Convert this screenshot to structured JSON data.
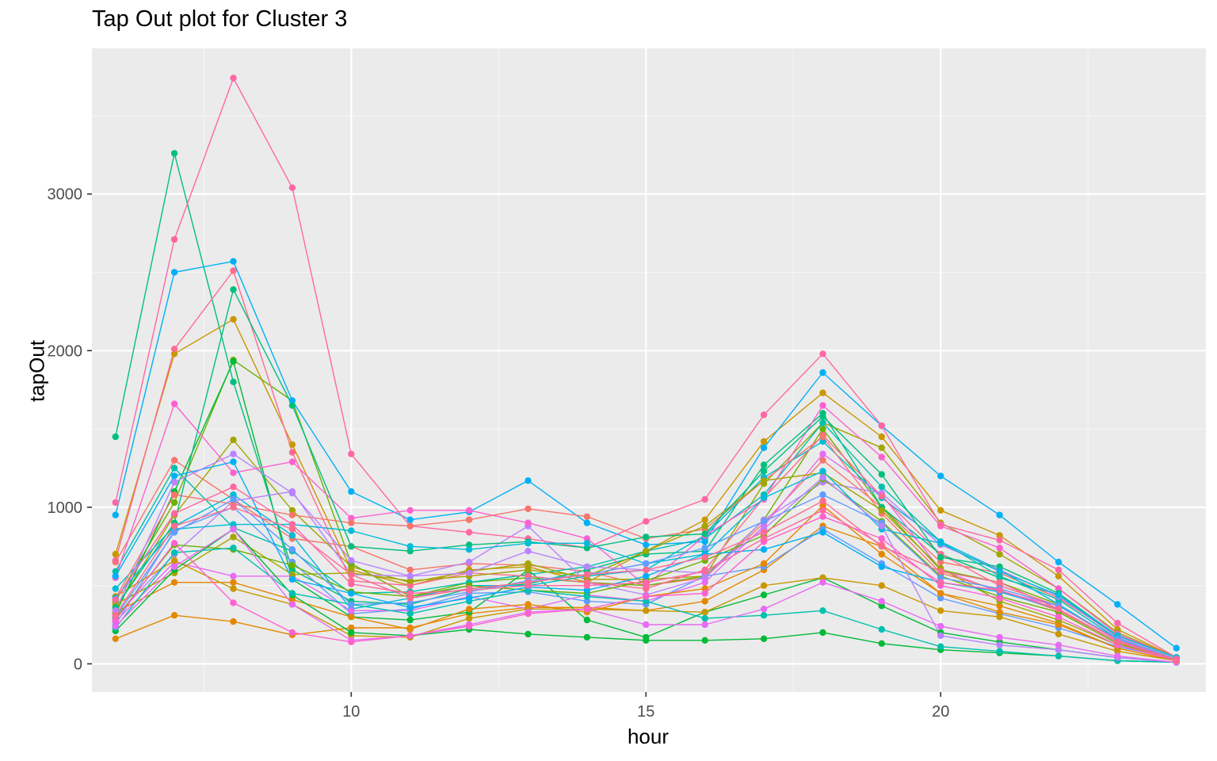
{
  "chart_data": {
    "type": "line",
    "title": "Tap Out plot for Cluster 3",
    "xlabel": "hour",
    "ylabel": "tapOut",
    "x_ticks": [
      10,
      15,
      20
    ],
    "y_ticks": [
      0,
      1000,
      2000,
      3000
    ],
    "xlim": [
      5.6,
      24.5
    ],
    "ylim": [
      -180,
      3930
    ],
    "grid": true,
    "legend": "none",
    "theme": {
      "panel_bg": "#EBEBEB",
      "grid_major": "#FFFFFF",
      "grid_minor": "#F5F5F5",
      "tick_text": "#4D4D4D"
    },
    "x": [
      6,
      7,
      8,
      9,
      10,
      11,
      12,
      13,
      14,
      15,
      16,
      17,
      18,
      19,
      20,
      21,
      22,
      23,
      24
    ],
    "series": [
      {
        "color": "#F8766D",
        "values": [
          650,
          1300,
          1050,
          800,
          750,
          600,
          640,
          630,
          590,
          500,
          550,
          900,
          1300,
          1000,
          650,
          580,
          420,
          180,
          40
        ]
      },
      {
        "color": "#E58700",
        "values": [
          160,
          310,
          270,
          185,
          230,
          230,
          320,
          360,
          360,
          340,
          400,
          600,
          880,
          750,
          450,
          370,
          260,
          100,
          20
        ]
      },
      {
        "color": "#C99800",
        "values": [
          700,
          1980,
          2200,
          1400,
          600,
          500,
          600,
          620,
          520,
          720,
          920,
          1420,
          1730,
          1450,
          980,
          820,
          560,
          220,
          40
        ]
      },
      {
        "color": "#A3A500",
        "values": [
          350,
          950,
          1430,
          980,
          620,
          520,
          590,
          640,
          540,
          540,
          560,
          1150,
          1540,
          1380,
          900,
          700,
          480,
          200,
          40
        ]
      },
      {
        "color": "#6BB100",
        "values": [
          400,
          1030,
          1940,
          1680,
          640,
          430,
          520,
          550,
          520,
          500,
          560,
          920,
          1500,
          1000,
          600,
          520,
          380,
          150,
          30
        ]
      },
      {
        "color": "#00BA38",
        "values": [
          320,
          1100,
          1930,
          540,
          300,
          280,
          330,
          600,
          280,
          170,
          330,
          440,
          550,
          370,
          200,
          140,
          90,
          40,
          10
        ]
      },
      {
        "color": "#00BF7D",
        "values": [
          1450,
          3260,
          1800,
          600,
          400,
          380,
          480,
          510,
          600,
          700,
          720,
          1270,
          1600,
          1000,
          700,
          550,
          440,
          170,
          30
        ]
      },
      {
        "color": "#00C0AF",
        "values": [
          590,
          1250,
          870,
          720,
          450,
          460,
          520,
          570,
          620,
          720,
          800,
          1080,
          1540,
          1130,
          780,
          560,
          410,
          160,
          30
        ]
      },
      {
        "color": "#00BCD8",
        "values": [
          480,
          880,
          1080,
          820,
          350,
          420,
          500,
          500,
          560,
          600,
          820,
          1190,
          1420,
          1060,
          780,
          600,
          380,
          150,
          30
        ]
      },
      {
        "color": "#00B0F6",
        "values": [
          950,
          2500,
          2570,
          1680,
          1100,
          920,
          970,
          1170,
          900,
          760,
          780,
          1380,
          1860,
          1520,
          1200,
          950,
          650,
          380,
          100
        ]
      },
      {
        "color": "#619CFF",
        "values": [
          250,
          850,
          1000,
          650,
          320,
          350,
          450,
          460,
          400,
          380,
          560,
          620,
          860,
          640,
          420,
          320,
          230,
          110,
          30
        ]
      },
      {
        "color": "#B983FF",
        "values": [
          300,
          700,
          1040,
          1100,
          570,
          560,
          650,
          880,
          520,
          440,
          550,
          920,
          1160,
          1090,
          760,
          600,
          430,
          170,
          30
        ]
      },
      {
        "color": "#E76BF3",
        "values": [
          270,
          650,
          560,
          560,
          340,
          340,
          430,
          350,
          440,
          400,
          520,
          880,
          1340,
          1080,
          600,
          460,
          370,
          150,
          30
        ]
      },
      {
        "color": "#FD61D1",
        "values": [
          550,
          1660,
          1220,
          1290,
          930,
          980,
          980,
          900,
          800,
          500,
          820,
          1050,
          1650,
          1320,
          880,
          740,
          480,
          190,
          40
        ]
      },
      {
        "color": "#FF67A4",
        "values": [
          1030,
          2710,
          3740,
          3040,
          1340,
          880,
          840,
          800,
          740,
          910,
          1050,
          1590,
          1980,
          1520,
          890,
          790,
          600,
          260,
          40
        ]
      },
      {
        "color": "#FF6C91",
        "values": [
          660,
          2010,
          2510,
          1350,
          530,
          500,
          580,
          560,
          520,
          480,
          600,
          1060,
          1460,
          1070,
          700,
          500,
          370,
          150,
          30
        ]
      },
      {
        "color": "#F8766D",
        "values": [
          420,
          1080,
          1020,
          950,
          900,
          880,
          920,
          990,
          940,
          800,
          860,
          1170,
          1450,
          960,
          580,
          470,
          340,
          140,
          30
        ]
      },
      {
        "color": "#E58700",
        "values": [
          330,
          520,
          520,
          410,
          300,
          220,
          350,
          380,
          330,
          430,
          480,
          640,
          1010,
          700,
          450,
          330,
          250,
          100,
          20
        ]
      },
      {
        "color": "#C99800",
        "values": [
          430,
          660,
          480,
          380,
          180,
          170,
          290,
          350,
          350,
          340,
          330,
          500,
          550,
          500,
          340,
          300,
          190,
          80,
          20
        ]
      },
      {
        "color": "#A3A500",
        "values": [
          380,
          580,
          810,
          570,
          580,
          530,
          560,
          600,
          560,
          720,
          880,
          1170,
          1220,
          980,
          610,
          400,
          280,
          120,
          30
        ]
      },
      {
        "color": "#6BB100",
        "values": [
          290,
          760,
          730,
          630,
          460,
          430,
          500,
          470,
          450,
          530,
          660,
          820,
          1180,
          910,
          560,
          430,
          330,
          130,
          30
        ]
      },
      {
        "color": "#00BA38",
        "values": [
          210,
          600,
          860,
          440,
          200,
          180,
          220,
          190,
          170,
          150,
          150,
          160,
          200,
          130,
          90,
          70,
          50,
          20,
          10
        ]
      },
      {
        "color": "#00BF7D",
        "values": [
          360,
          900,
          2390,
          1650,
          750,
          720,
          760,
          780,
          740,
          810,
          830,
          1230,
          1580,
          1210,
          680,
          620,
          450,
          180,
          40
        ]
      },
      {
        "color": "#00C0AF",
        "values": [
          230,
          710,
          740,
          450,
          380,
          320,
          400,
          470,
          430,
          400,
          290,
          310,
          340,
          220,
          110,
          80,
          50,
          20,
          10
        ]
      },
      {
        "color": "#00BCD8",
        "values": [
          420,
          860,
          890,
          890,
          850,
          750,
          730,
          770,
          770,
          640,
          700,
          1060,
          1230,
          860,
          770,
          590,
          440,
          180,
          40
        ]
      },
      {
        "color": "#00B0F6",
        "values": [
          560,
          1200,
          1290,
          540,
          450,
          360,
          420,
          490,
          470,
          560,
          700,
          730,
          840,
          620,
          520,
          460,
          350,
          140,
          30
        ]
      },
      {
        "color": "#619CFF",
        "values": [
          300,
          840,
          1050,
          730,
          380,
          390,
          460,
          530,
          570,
          640,
          740,
          910,
          1080,
          900,
          550,
          480,
          370,
          160,
          30
        ]
      },
      {
        "color": "#B983FF",
        "values": [
          340,
          1160,
          1340,
          1090,
          660,
          560,
          580,
          720,
          620,
          600,
          580,
          860,
          1190,
          880,
          180,
          120,
          90,
          40,
          10
        ]
      },
      {
        "color": "#E76BF3",
        "values": [
          240,
          620,
          860,
          380,
          150,
          180,
          250,
          330,
          350,
          250,
          250,
          350,
          520,
          400,
          240,
          170,
          120,
          50,
          10
        ]
      },
      {
        "color": "#FD61D1",
        "values": [
          280,
          770,
          390,
          200,
          140,
          180,
          240,
          320,
          350,
          430,
          450,
          780,
          940,
          800,
          500,
          420,
          300,
          120,
          20
        ]
      },
      {
        "color": "#FF67A4",
        "values": [
          410,
          960,
          1130,
          890,
          510,
          450,
          470,
          500,
          500,
          520,
          590,
          800,
          980,
          760,
          520,
          470,
          350,
          140,
          30
        ]
      },
      {
        "color": "#FF6C91",
        "values": [
          310,
          880,
          1000,
          860,
          570,
          420,
          480,
          520,
          570,
          600,
          680,
          840,
          1040,
          750,
          590,
          520,
          350,
          140,
          20
        ]
      }
    ]
  }
}
